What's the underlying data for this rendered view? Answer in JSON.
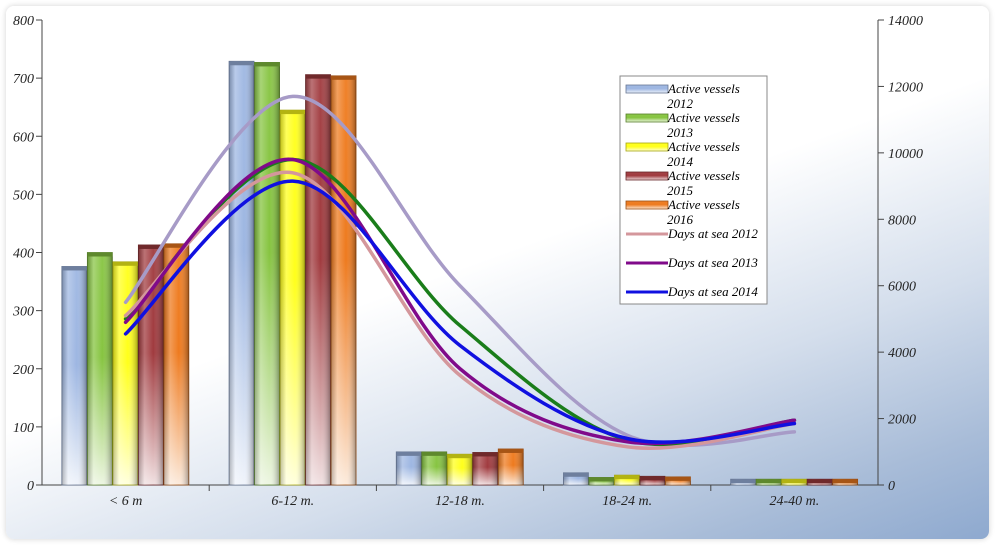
{
  "chart_data": {
    "type": "bar",
    "categories": [
      "< 6 m",
      "6-12 m.",
      "12-18 m.",
      "18-24 m.",
      "24-40 m."
    ],
    "bar_series": [
      {
        "name": "Active vessels 2012",
        "legend_lines": [
          "Active vessels",
          "2012"
        ],
        "color": "#9db6e2",
        "values": [
          376,
          729,
          57,
          21,
          10
        ]
      },
      {
        "name": "Active vessels 2013",
        "legend_lines": [
          "Active vessels",
          "2013"
        ],
        "color": "#86c440",
        "values": [
          400,
          727,
          57,
          13,
          10
        ]
      },
      {
        "name": "Active vessels 2014",
        "legend_lines": [
          "Active vessels",
          "2014"
        ],
        "color": "#ffff1a",
        "values": [
          384,
          645,
          53,
          17,
          10
        ]
      },
      {
        "name": "Active vessels 2015",
        "legend_lines": [
          "Active vessels",
          "2015"
        ],
        "color": "#a03a3e",
        "values": [
          413,
          706,
          56,
          15,
          10
        ]
      },
      {
        "name": "Active vessels 2016",
        "legend_lines": [
          "Active vessels",
          "2016"
        ],
        "color": "#ee7a1e",
        "values": [
          415,
          704,
          62,
          14,
          10
        ]
      }
    ],
    "line_series": [
      {
        "name": "Days at sea 2012",
        "color": "#d4979c",
        "values": [
          5100,
          9400,
          3300,
          1150,
          1850
        ]
      },
      {
        "name": "Days at sea 2013",
        "color": "#800a8a",
        "values": [
          4900,
          9800,
          3500,
          1300,
          1950
        ]
      },
      {
        "name": "Days at sea 2014",
        "color": "#1010e0",
        "values": [
          4550,
          9150,
          4200,
          1400,
          1850
        ]
      }
    ],
    "unlabeled_line_series": [
      {
        "color": "#1a7d1a",
        "values": [
          5000,
          9800,
          4800,
          1350,
          1950
        ]
      },
      {
        "color": "#a79bc7",
        "values": [
          5500,
          11700,
          6000,
          1500,
          1600
        ]
      }
    ],
    "y_left": {
      "min": 0,
      "max": 800,
      "ticks": [
        "0",
        "100",
        "200",
        "300",
        "400",
        "500",
        "600",
        "700",
        "800"
      ]
    },
    "y_right": {
      "min": 0,
      "max": 14000,
      "ticks": [
        "0",
        "2000",
        "4000",
        "6000",
        "8000",
        "10000",
        "12000",
        "14000"
      ]
    },
    "legend": {
      "placement": "top-right",
      "series_order": [
        "Active vessels 2012",
        "Active vessels 2013",
        "Active vessels 2014",
        "Active vessels 2015",
        "Active vessels 2016",
        "Days at sea 2012",
        "Days at sea 2013",
        "Days at sea 2014"
      ]
    },
    "grid": false,
    "title": "",
    "xlabel": "",
    "ylabel": ""
  }
}
